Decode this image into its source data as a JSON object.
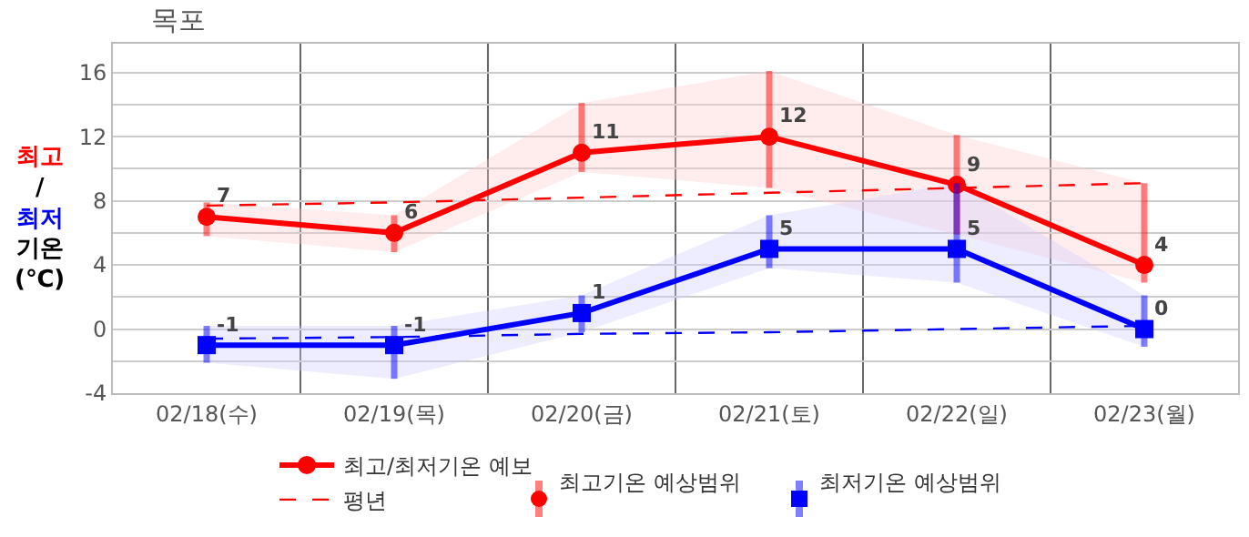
{
  "chart_data": {
    "type": "line",
    "title": "목포",
    "ylabel": "최고/최저 기온 (℃)",
    "categories": [
      "02/18(수)",
      "02/19(목)",
      "02/20(금)",
      "02/21(토)",
      "02/22(일)",
      "02/23(월)"
    ],
    "ylim": [
      -4,
      17.8
    ],
    "yticks": [
      -4,
      {
        "value": -2,
        "label": null
      },
      0,
      {
        "value": 2,
        "label": null
      },
      4,
      {
        "value": 6,
        "label": null
      },
      8,
      {
        "value": 10,
        "label": null
      },
      12,
      {
        "value": 14,
        "label": null
      },
      16
    ],
    "grid": true,
    "legend": "bottom",
    "series": [
      {
        "name": "최고/최저기온 예보",
        "color": "#ff0000",
        "marker": "circle",
        "values": [
          7,
          6,
          11,
          12,
          9,
          4
        ],
        "value_labels": [
          "7",
          "6",
          "11",
          "12",
          "9",
          "4"
        ],
        "errors": [
          [
            5.8,
            7.9
          ],
          [
            4.8,
            7.1
          ],
          [
            9.8,
            14.1
          ],
          [
            8.8,
            16.1
          ],
          [
            5.9,
            12.1
          ],
          [
            2.9,
            9.1
          ]
        ],
        "lower": [
          5.8,
          4.8,
          9.8,
          8.8,
          5.9,
          2.9
        ],
        "upper": [
          7.9,
          7.1,
          14.1,
          16.1,
          12.1,
          9.1
        ]
      },
      {
        "color": "#0000ff",
        "marker": "square",
        "values": [
          -1,
          -1,
          1,
          5,
          5,
          0
        ],
        "value_labels": [
          "-1",
          "-1",
          "1",
          "5",
          "5",
          "0"
        ],
        "errors": [
          [
            -2.1,
            0.2
          ],
          [
            -3.1,
            0.2
          ],
          [
            -0.2,
            2.1
          ],
          [
            3.8,
            7.1
          ],
          [
            2.9,
            9.1
          ],
          [
            -1.1,
            2.1
          ]
        ],
        "lower": [
          -2.1,
          -3.1,
          -0.2,
          3.8,
          2.9,
          -1.1
        ],
        "upper": [
          0.2,
          0.2,
          2.1,
          7.1,
          9.1,
          2.1
        ]
      },
      {
        "name": "평년",
        "color": "#ff0000",
        "line_style": "dashed",
        "marker": "none",
        "values": [
          7.7,
          7.9,
          8.2,
          8.5,
          8.8,
          9.1
        ]
      },
      {
        "color": "#0000ff",
        "line_style": "dashed",
        "marker": "none",
        "values": [
          -0.6,
          -0.5,
          -0.3,
          -0.2,
          0,
          0.2
        ]
      }
    ],
    "annotations": [
      "최고기온 예상범위",
      "최저기온 예상범위"
    ]
  }
}
